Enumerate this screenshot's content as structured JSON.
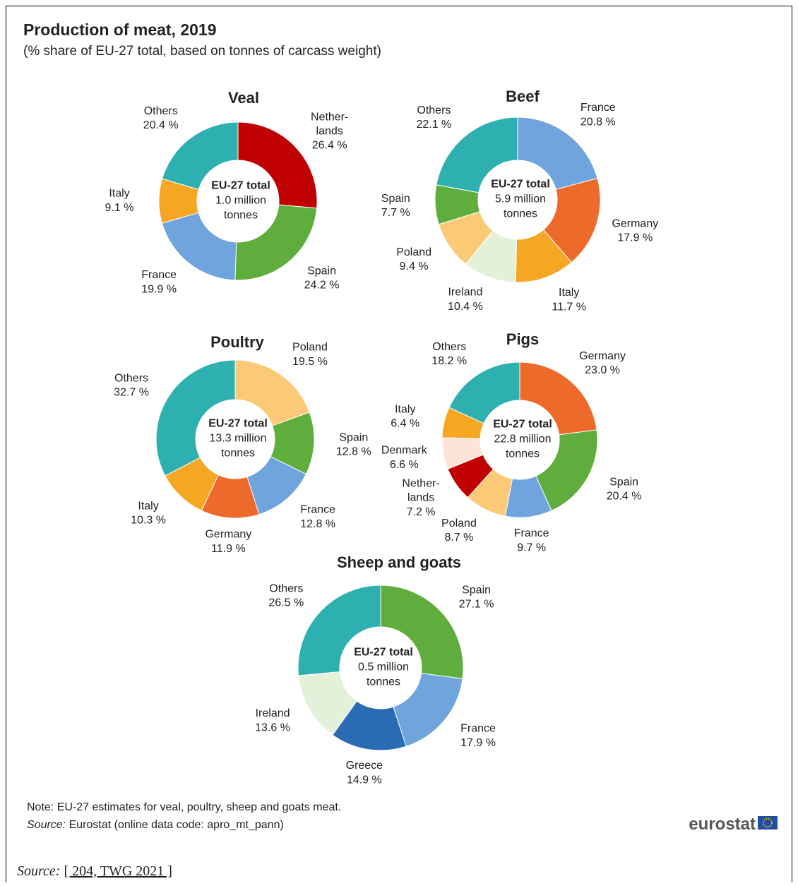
{
  "title": "Production of meat, 2019",
  "subtitle": "(% share of EU-27 total, based on tonnes of carcass weight)",
  "note": "Note:  EU-27 estimates for veal, poultry, sheep and goats meat.",
  "source_label": "Source:",
  "source_text": "Eurostat (online data code: apro_mt_pann)",
  "logo": "eurostat",
  "footer_label": "Source:",
  "footer_link": "[ 204, TWG 2021 ]",
  "chart_data": [
    {
      "type": "donut",
      "title": "Veal",
      "center_label": [
        "EU-27 total",
        "1.0 million",
        "tonnes"
      ],
      "categories": [
        "Nether-\nlands",
        "Spain",
        "France",
        "Italy",
        "Others"
      ],
      "values": [
        26.4,
        24.2,
        19.9,
        9.1,
        20.4
      ],
      "value_labels": [
        "26.4 %",
        "24.2 %",
        "19.9 %",
        "9.1 %",
        "20.4 %"
      ],
      "colors": [
        "#c00000",
        "#5fad3c",
        "#6fa5dc",
        "#f5a623",
        "#2fb0b0"
      ]
    },
    {
      "type": "donut",
      "title": "Beef",
      "center_label": [
        "EU-27 total",
        "5.9 million",
        "tonnes"
      ],
      "categories": [
        "France",
        "Germany",
        "Italy",
        "Ireland",
        "Poland",
        "Spain",
        "Others"
      ],
      "values": [
        20.8,
        17.9,
        11.7,
        10.4,
        9.4,
        7.7,
        22.1
      ],
      "value_labels": [
        "20.8 %",
        "17.9 %",
        "11.7 %",
        "10.4 %",
        "9.4 %",
        "7.7 %",
        "22.1 %"
      ],
      "colors": [
        "#6fa5dc",
        "#ee6a2a",
        "#f5a623",
        "#e3f1d9",
        "#fcc977",
        "#5fad3c",
        "#2fb0b0"
      ]
    },
    {
      "type": "donut",
      "title": "Poultry",
      "center_label": [
        "EU-27 total",
        "13.3 million",
        "tonnes"
      ],
      "categories": [
        "Poland",
        "Spain",
        "France",
        "Germany",
        "Italy",
        "Others"
      ],
      "values": [
        19.5,
        12.8,
        12.8,
        11.9,
        10.3,
        32.7
      ],
      "value_labels": [
        "19.5 %",
        "12.8 %",
        "12.8 %",
        "11.9 %",
        "10.3 %",
        "32.7 %"
      ],
      "colors": [
        "#fcc977",
        "#5fad3c",
        "#6fa5dc",
        "#ee6a2a",
        "#f5a623",
        "#2fb0b0"
      ]
    },
    {
      "type": "donut",
      "title": "Pigs",
      "center_label": [
        "EU-27 total",
        "22.8 million",
        "tonnes"
      ],
      "categories": [
        "Germany",
        "Spain",
        "France",
        "Poland",
        "Nether-\nlands",
        "Denmark",
        "Italy",
        "Others"
      ],
      "values": [
        23.0,
        20.4,
        9.7,
        8.7,
        7.2,
        6.6,
        6.4,
        18.2
      ],
      "value_labels": [
        "23.0 %",
        "20.4 %",
        "9.7 %",
        "8.7 %",
        "7.2 %",
        "6.6 %",
        "6.4 %",
        "18.2 %"
      ],
      "colors": [
        "#ee6a2a",
        "#5fad3c",
        "#6fa5dc",
        "#fcc977",
        "#c00000",
        "#fde3d8",
        "#f5a623",
        "#2fb0b0"
      ]
    },
    {
      "type": "donut",
      "title": "Sheep and goats",
      "center_label": [
        "EU-27 total",
        "0.5 million",
        "tonnes"
      ],
      "categories": [
        "Spain",
        "France",
        "Greece",
        "Ireland",
        "Others"
      ],
      "values": [
        27.1,
        17.9,
        14.9,
        13.6,
        26.5
      ],
      "value_labels": [
        "27.1 %",
        "17.9 %",
        "14.9 %",
        "13.6 %",
        "26.5 %"
      ],
      "colors": [
        "#5fad3c",
        "#6fa5dc",
        "#2a6cb4",
        "#e3f1d9",
        "#2fb0b0"
      ]
    }
  ]
}
